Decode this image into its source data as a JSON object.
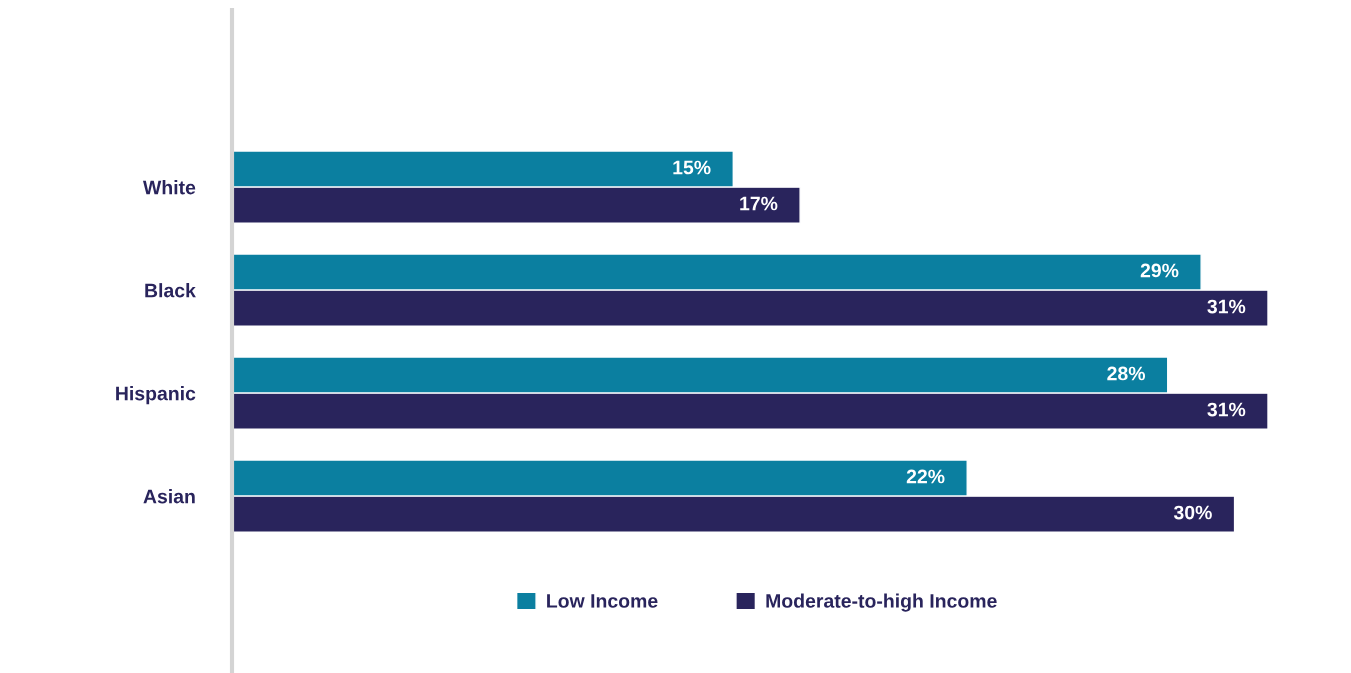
{
  "chart_data": {
    "type": "bar",
    "orientation": "horizontal",
    "categories": [
      "White",
      "Black",
      "Hispanic",
      "Asian"
    ],
    "series": [
      {
        "name": "Low Income",
        "color": "#0b7fa0",
        "values": [
          15,
          29,
          28,
          22
        ],
        "value_labels": [
          "15%",
          "29%",
          "28%",
          "22%"
        ]
      },
      {
        "name": "Moderate-to-high Income",
        "color": "#29245c",
        "values": [
          17,
          31,
          31,
          30
        ],
        "value_labels": [
          "17%",
          "31%",
          "31%",
          "30%"
        ]
      }
    ],
    "legend": "bottom",
    "grid": false
  }
}
